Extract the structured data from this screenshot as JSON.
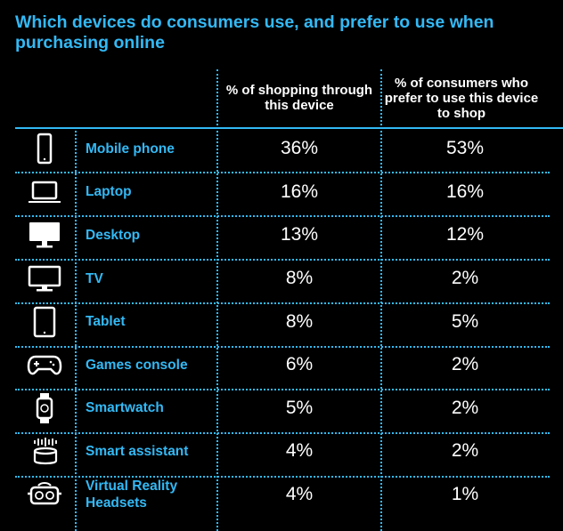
{
  "chart_data": {
    "type": "table",
    "title": "Which devices do consumers use, and prefer to use when purchasing online",
    "columns": [
      "",
      "% of shopping through this device",
      "% of consumers who prefer to use this device to shop"
    ],
    "rows": [
      {
        "icon": "mobile-phone-icon",
        "device": "Mobile phone",
        "shopping": "36%",
        "prefer": "53%"
      },
      {
        "icon": "laptop-icon",
        "device": "Laptop",
        "shopping": "16%",
        "prefer": "16%"
      },
      {
        "icon": "desktop-icon",
        "device": "Desktop",
        "shopping": "13%",
        "prefer": "12%"
      },
      {
        "icon": "tv-icon",
        "device": "TV",
        "shopping": "8%",
        "prefer": "2%"
      },
      {
        "icon": "tablet-icon",
        "device": "Tablet",
        "shopping": "8%",
        "prefer": "5%"
      },
      {
        "icon": "games-console-icon",
        "device": "Games console",
        "shopping": "6%",
        "prefer": "2%"
      },
      {
        "icon": "smartwatch-icon",
        "device": "Smartwatch",
        "shopping": "5%",
        "prefer": "2%"
      },
      {
        "icon": "smart-assistant-icon",
        "device": "Smart assistant",
        "shopping": "4%",
        "prefer": "2%"
      },
      {
        "icon": "vr-headset-icon",
        "device": "Virtual Reality Headsets",
        "shopping": "4%",
        "prefer": "1%"
      }
    ],
    "colors": {
      "background": "#000000",
      "accent": "#33b9f5",
      "text": "#ffffff"
    }
  }
}
